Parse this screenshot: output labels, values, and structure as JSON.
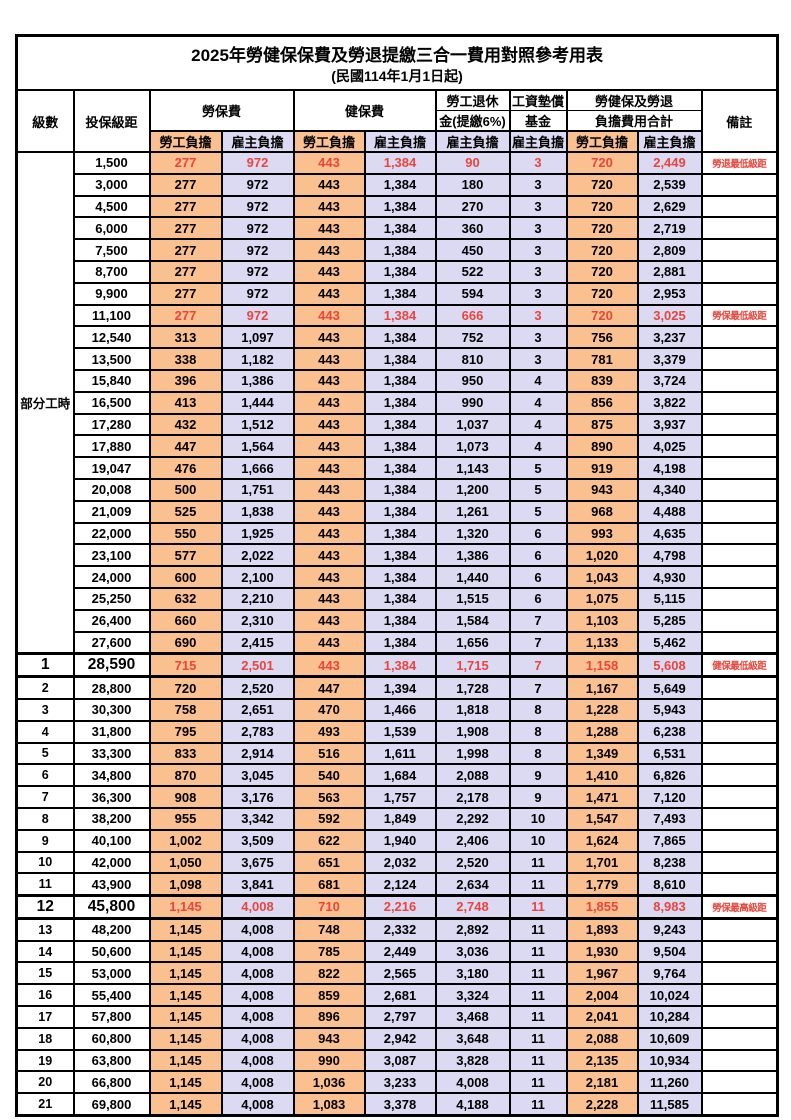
{
  "title": "2025年勞健保保費及勞退提繳三合一費用對照參考用表",
  "subtitle": "(民國114年1月1日起)",
  "header": {
    "level": "級數",
    "bracket": "投保級距",
    "labor_fee": "勞保費",
    "health_fee": "健保費",
    "pension_line1": "勞工退休",
    "pension_line2": "金(提繳6%)",
    "wage_fund_line1": "工資墊償",
    "wage_fund_line2": "基金",
    "total_line1": "勞健保及勞退",
    "total_line2": "負擔費用合計",
    "remark": "備註",
    "employee_burden": "勞工負擔",
    "employer_burden": "雇主負擔"
  },
  "part_time_label": "部分工時",
  "colors": {
    "employee_bg": "#fac090",
    "employer_bg": "#dcd9f2",
    "highlight_red": "#e8463c",
    "border": "#000000",
    "background": "#ffffff"
  },
  "rows": [
    {
      "level": "",
      "bracket": "1,500",
      "values": [
        "277",
        "972",
        "443",
        "1,384",
        "90",
        "3",
        "720",
        "2,449"
      ],
      "remark": "勞退最低級距",
      "highlight": true,
      "emph": false
    },
    {
      "level": "",
      "bracket": "3,000",
      "values": [
        "277",
        "972",
        "443",
        "1,384",
        "180",
        "3",
        "720",
        "2,539"
      ],
      "remark": "",
      "highlight": false,
      "emph": false
    },
    {
      "level": "",
      "bracket": "4,500",
      "values": [
        "277",
        "972",
        "443",
        "1,384",
        "270",
        "3",
        "720",
        "2,629"
      ],
      "remark": "",
      "highlight": false,
      "emph": false
    },
    {
      "level": "",
      "bracket": "6,000",
      "values": [
        "277",
        "972",
        "443",
        "1,384",
        "360",
        "3",
        "720",
        "2,719"
      ],
      "remark": "",
      "highlight": false,
      "emph": false
    },
    {
      "level": "",
      "bracket": "7,500",
      "values": [
        "277",
        "972",
        "443",
        "1,384",
        "450",
        "3",
        "720",
        "2,809"
      ],
      "remark": "",
      "highlight": false,
      "emph": false
    },
    {
      "level": "",
      "bracket": "8,700",
      "values": [
        "277",
        "972",
        "443",
        "1,384",
        "522",
        "3",
        "720",
        "2,881"
      ],
      "remark": "",
      "highlight": false,
      "emph": false
    },
    {
      "level": "",
      "bracket": "9,900",
      "values": [
        "277",
        "972",
        "443",
        "1,384",
        "594",
        "3",
        "720",
        "2,953"
      ],
      "remark": "",
      "highlight": false,
      "emph": false
    },
    {
      "level": "",
      "bracket": "11,100",
      "values": [
        "277",
        "972",
        "443",
        "1,384",
        "666",
        "3",
        "720",
        "3,025"
      ],
      "remark": "勞保最低級距",
      "highlight": true,
      "emph": false
    },
    {
      "level": "",
      "bracket": "12,540",
      "values": [
        "313",
        "1,097",
        "443",
        "1,384",
        "752",
        "3",
        "756",
        "3,237"
      ],
      "remark": "",
      "highlight": false,
      "emph": false
    },
    {
      "level": "",
      "bracket": "13,500",
      "values": [
        "338",
        "1,182",
        "443",
        "1,384",
        "810",
        "3",
        "781",
        "3,379"
      ],
      "remark": "",
      "highlight": false,
      "emph": false
    },
    {
      "level": "",
      "bracket": "15,840",
      "values": [
        "396",
        "1,386",
        "443",
        "1,384",
        "950",
        "4",
        "839",
        "3,724"
      ],
      "remark": "",
      "highlight": false,
      "emph": false
    },
    {
      "level": "",
      "bracket": "16,500",
      "values": [
        "413",
        "1,444",
        "443",
        "1,384",
        "990",
        "4",
        "856",
        "3,822"
      ],
      "remark": "",
      "highlight": false,
      "emph": false
    },
    {
      "level": "",
      "bracket": "17,280",
      "values": [
        "432",
        "1,512",
        "443",
        "1,384",
        "1,037",
        "4",
        "875",
        "3,937"
      ],
      "remark": "",
      "highlight": false,
      "emph": false
    },
    {
      "level": "",
      "bracket": "17,880",
      "values": [
        "447",
        "1,564",
        "443",
        "1,384",
        "1,073",
        "4",
        "890",
        "4,025"
      ],
      "remark": "",
      "highlight": false,
      "emph": false
    },
    {
      "level": "",
      "bracket": "19,047",
      "values": [
        "476",
        "1,666",
        "443",
        "1,384",
        "1,143",
        "5",
        "919",
        "4,198"
      ],
      "remark": "",
      "highlight": false,
      "emph": false
    },
    {
      "level": "",
      "bracket": "20,008",
      "values": [
        "500",
        "1,751",
        "443",
        "1,384",
        "1,200",
        "5",
        "943",
        "4,340"
      ],
      "remark": "",
      "highlight": false,
      "emph": false
    },
    {
      "level": "",
      "bracket": "21,009",
      "values": [
        "525",
        "1,838",
        "443",
        "1,384",
        "1,261",
        "5",
        "968",
        "4,488"
      ],
      "remark": "",
      "highlight": false,
      "emph": false
    },
    {
      "level": "",
      "bracket": "22,000",
      "values": [
        "550",
        "1,925",
        "443",
        "1,384",
        "1,320",
        "6",
        "993",
        "4,635"
      ],
      "remark": "",
      "highlight": false,
      "emph": false
    },
    {
      "level": "",
      "bracket": "23,100",
      "values": [
        "577",
        "2,022",
        "443",
        "1,384",
        "1,386",
        "6",
        "1,020",
        "4,798"
      ],
      "remark": "",
      "highlight": false,
      "emph": false
    },
    {
      "level": "",
      "bracket": "24,000",
      "values": [
        "600",
        "2,100",
        "443",
        "1,384",
        "1,440",
        "6",
        "1,043",
        "4,930"
      ],
      "remark": "",
      "highlight": false,
      "emph": false
    },
    {
      "level": "",
      "bracket": "25,250",
      "values": [
        "632",
        "2,210",
        "443",
        "1,384",
        "1,515",
        "6",
        "1,075",
        "5,115"
      ],
      "remark": "",
      "highlight": false,
      "emph": false
    },
    {
      "level": "",
      "bracket": "26,400",
      "values": [
        "660",
        "2,310",
        "443",
        "1,384",
        "1,584",
        "7",
        "1,103",
        "5,285"
      ],
      "remark": "",
      "highlight": false,
      "emph": false
    },
    {
      "level": "",
      "bracket": "27,600",
      "values": [
        "690",
        "2,415",
        "443",
        "1,384",
        "1,656",
        "7",
        "1,133",
        "5,462"
      ],
      "remark": "",
      "highlight": false,
      "emph": false
    },
    {
      "level": "1",
      "bracket": "28,590",
      "values": [
        "715",
        "2,501",
        "443",
        "1,384",
        "1,715",
        "7",
        "1,158",
        "5,608"
      ],
      "remark": "健保最低級距",
      "highlight": true,
      "emph": true
    },
    {
      "level": "2",
      "bracket": "28,800",
      "values": [
        "720",
        "2,520",
        "447",
        "1,394",
        "1,728",
        "7",
        "1,167",
        "5,649"
      ],
      "remark": "",
      "highlight": false,
      "emph": false
    },
    {
      "level": "3",
      "bracket": "30,300",
      "values": [
        "758",
        "2,651",
        "470",
        "1,466",
        "1,818",
        "8",
        "1,228",
        "5,943"
      ],
      "remark": "",
      "highlight": false,
      "emph": false
    },
    {
      "level": "4",
      "bracket": "31,800",
      "values": [
        "795",
        "2,783",
        "493",
        "1,539",
        "1,908",
        "8",
        "1,288",
        "6,238"
      ],
      "remark": "",
      "highlight": false,
      "emph": false
    },
    {
      "level": "5",
      "bracket": "33,300",
      "values": [
        "833",
        "2,914",
        "516",
        "1,611",
        "1,998",
        "8",
        "1,349",
        "6,531"
      ],
      "remark": "",
      "highlight": false,
      "emph": false
    },
    {
      "level": "6",
      "bracket": "34,800",
      "values": [
        "870",
        "3,045",
        "540",
        "1,684",
        "2,088",
        "9",
        "1,410",
        "6,826"
      ],
      "remark": "",
      "highlight": false,
      "emph": false
    },
    {
      "level": "7",
      "bracket": "36,300",
      "values": [
        "908",
        "3,176",
        "563",
        "1,757",
        "2,178",
        "9",
        "1,471",
        "7,120"
      ],
      "remark": "",
      "highlight": false,
      "emph": false
    },
    {
      "level": "8",
      "bracket": "38,200",
      "values": [
        "955",
        "3,342",
        "592",
        "1,849",
        "2,292",
        "10",
        "1,547",
        "7,493"
      ],
      "remark": "",
      "highlight": false,
      "emph": false
    },
    {
      "level": "9",
      "bracket": "40,100",
      "values": [
        "1,002",
        "3,509",
        "622",
        "1,940",
        "2,406",
        "10",
        "1,624",
        "7,865"
      ],
      "remark": "",
      "highlight": false,
      "emph": false
    },
    {
      "level": "10",
      "bracket": "42,000",
      "values": [
        "1,050",
        "3,675",
        "651",
        "2,032",
        "2,520",
        "11",
        "1,701",
        "8,238"
      ],
      "remark": "",
      "highlight": false,
      "emph": false
    },
    {
      "level": "11",
      "bracket": "43,900",
      "values": [
        "1,098",
        "3,841",
        "681",
        "2,124",
        "2,634",
        "11",
        "1,779",
        "8,610"
      ],
      "remark": "",
      "highlight": false,
      "emph": false
    },
    {
      "level": "12",
      "bracket": "45,800",
      "values": [
        "1,145",
        "4,008",
        "710",
        "2,216",
        "2,748",
        "11",
        "1,855",
        "8,983"
      ],
      "remark": "勞保最高級距",
      "highlight": true,
      "emph": true
    },
    {
      "level": "13",
      "bracket": "48,200",
      "values": [
        "1,145",
        "4,008",
        "748",
        "2,332",
        "2,892",
        "11",
        "1,893",
        "9,243"
      ],
      "remark": "",
      "highlight": false,
      "emph": false
    },
    {
      "level": "14",
      "bracket": "50,600",
      "values": [
        "1,145",
        "4,008",
        "785",
        "2,449",
        "3,036",
        "11",
        "1,930",
        "9,504"
      ],
      "remark": "",
      "highlight": false,
      "emph": false
    },
    {
      "level": "15",
      "bracket": "53,000",
      "values": [
        "1,145",
        "4,008",
        "822",
        "2,565",
        "3,180",
        "11",
        "1,967",
        "9,764"
      ],
      "remark": "",
      "highlight": false,
      "emph": false
    },
    {
      "level": "16",
      "bracket": "55,400",
      "values": [
        "1,145",
        "4,008",
        "859",
        "2,681",
        "3,324",
        "11",
        "2,004",
        "10,024"
      ],
      "remark": "",
      "highlight": false,
      "emph": false
    },
    {
      "level": "17",
      "bracket": "57,800",
      "values": [
        "1,145",
        "4,008",
        "896",
        "2,797",
        "3,468",
        "11",
        "2,041",
        "10,284"
      ],
      "remark": "",
      "highlight": false,
      "emph": false
    },
    {
      "level": "18",
      "bracket": "60,800",
      "values": [
        "1,145",
        "4,008",
        "943",
        "2,942",
        "3,648",
        "11",
        "2,088",
        "10,609"
      ],
      "remark": "",
      "highlight": false,
      "emph": false
    },
    {
      "level": "19",
      "bracket": "63,800",
      "values": [
        "1,145",
        "4,008",
        "990",
        "3,087",
        "3,828",
        "11",
        "2,135",
        "10,934"
      ],
      "remark": "",
      "highlight": false,
      "emph": false
    },
    {
      "level": "20",
      "bracket": "66,800",
      "values": [
        "1,145",
        "4,008",
        "1,036",
        "3,233",
        "4,008",
        "11",
        "2,181",
        "11,260"
      ],
      "remark": "",
      "highlight": false,
      "emph": false
    },
    {
      "level": "21",
      "bracket": "69,800",
      "values": [
        "1,145",
        "4,008",
        "1,083",
        "3,378",
        "4,188",
        "11",
        "2,228",
        "11,585"
      ],
      "remark": "",
      "highlight": false,
      "emph": false
    }
  ]
}
